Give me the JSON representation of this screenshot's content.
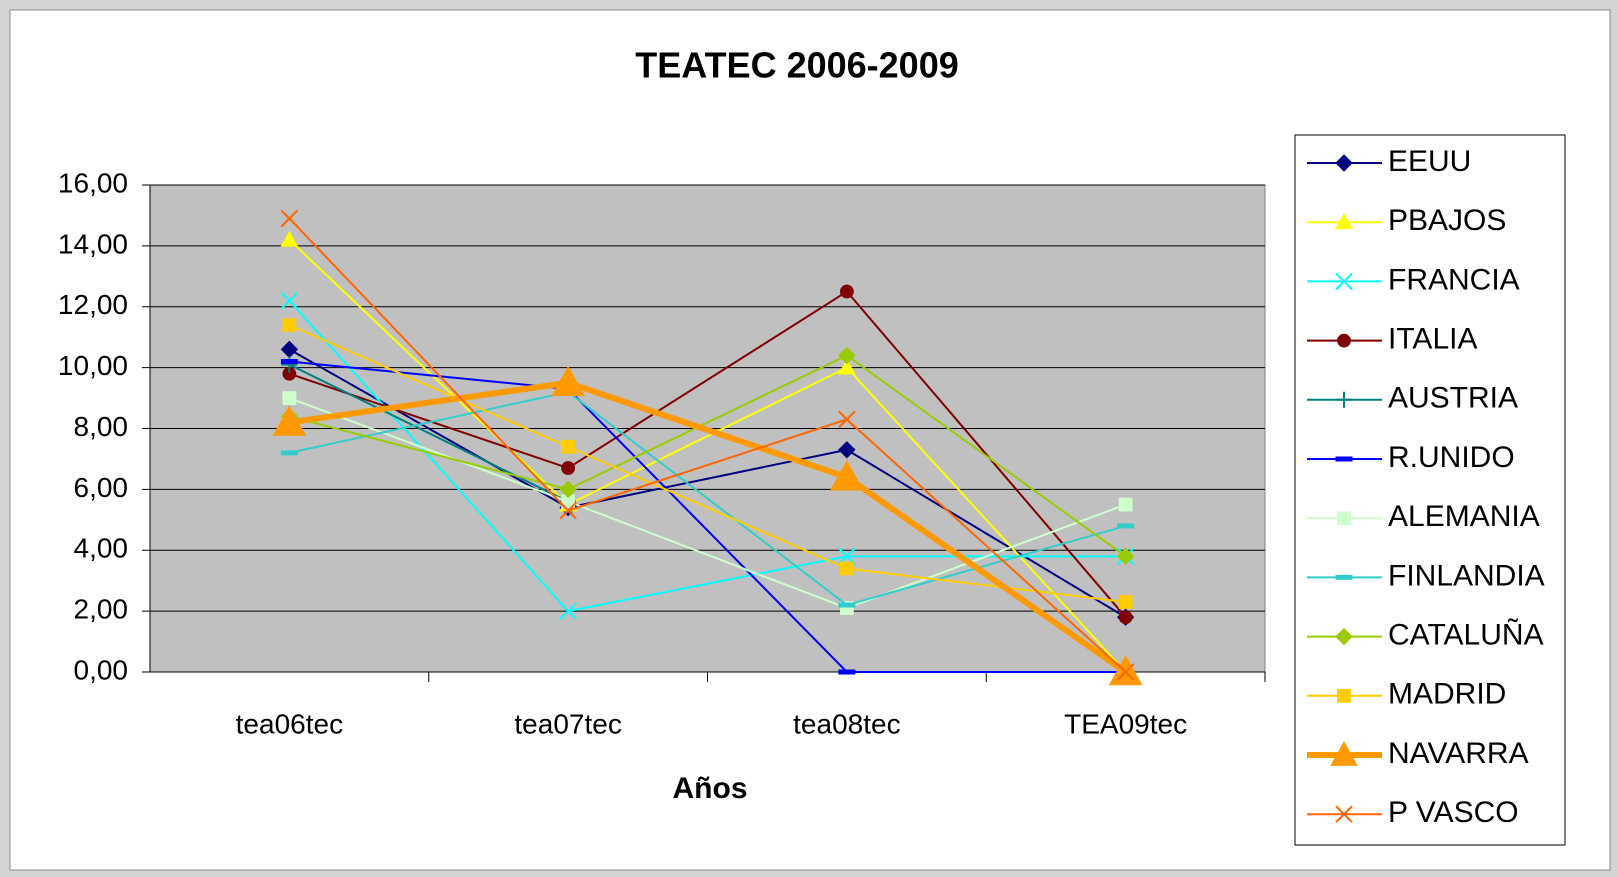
{
  "chart_data": {
    "type": "line",
    "title": "TEATEC 2006-2009",
    "x_label": "Años",
    "categories": [
      "tea06tec",
      "tea07tec",
      "tea08tec",
      "TEA09tec"
    ],
    "ylim": [
      0,
      16
    ],
    "yticks": [
      {
        "value": 0,
        "label": "0,00"
      },
      {
        "value": 2,
        "label": "2,00"
      },
      {
        "value": 4,
        "label": "4,00"
      },
      {
        "value": 6,
        "label": "6,00"
      },
      {
        "value": 8,
        "label": "8,00"
      },
      {
        "value": 10,
        "label": "10,00"
      },
      {
        "value": 12,
        "label": "12,00"
      },
      {
        "value": 14,
        "label": "14,00"
      },
      {
        "value": 16,
        "label": "16,00"
      }
    ],
    "grid": true,
    "legend": "right",
    "series": [
      {
        "name": "EEUU",
        "color": "#000080",
        "marker": "diamond",
        "values": [
          10.6,
          5.4,
          7.3,
          1.8
        ]
      },
      {
        "name": "PBAJOS",
        "color": "#ffff00",
        "marker": "triangle",
        "values": [
          14.2,
          5.5,
          10.0,
          0.0
        ]
      },
      {
        "name": "FRANCIA",
        "color": "#00ffff",
        "marker": "x",
        "values": [
          12.2,
          2.0,
          3.8,
          3.8
        ]
      },
      {
        "name": "ITALIA",
        "color": "#800000",
        "marker": "circle",
        "values": [
          9.8,
          6.7,
          12.5,
          1.8
        ]
      },
      {
        "name": "AUSTRIA",
        "color": "#008080",
        "marker": "plus",
        "values": [
          10.1,
          5.6,
          null,
          null
        ]
      },
      {
        "name": "R.UNIDO",
        "color": "#0000ff",
        "marker": "dash",
        "values": [
          10.2,
          9.3,
          0.0,
          0.0
        ]
      },
      {
        "name": "ALEMANIA",
        "color": "#ccffcc",
        "marker": "square",
        "values": [
          9.0,
          5.6,
          2.1,
          5.5
        ]
      },
      {
        "name": "FINLANDIA",
        "color": "#33cccc",
        "marker": "dash",
        "values": [
          7.2,
          9.2,
          2.2,
          4.8
        ]
      },
      {
        "name": "CATALUÑA",
        "color": "#99cc00",
        "marker": "diamond",
        "values": [
          8.4,
          6.0,
          10.4,
          3.8
        ]
      },
      {
        "name": "MADRID",
        "color": "#ffcc00",
        "marker": "square",
        "values": [
          11.4,
          7.4,
          3.4,
          2.3
        ]
      },
      {
        "name": "NAVARRA",
        "color": "#ff9900",
        "marker": "triangle",
        "width": 6,
        "values": [
          8.2,
          9.5,
          6.4,
          0.0
        ]
      },
      {
        "name": "P VASCO",
        "color": "#ff6600",
        "marker": "x",
        "values": [
          14.9,
          5.3,
          8.3,
          0.0
        ]
      }
    ]
  }
}
